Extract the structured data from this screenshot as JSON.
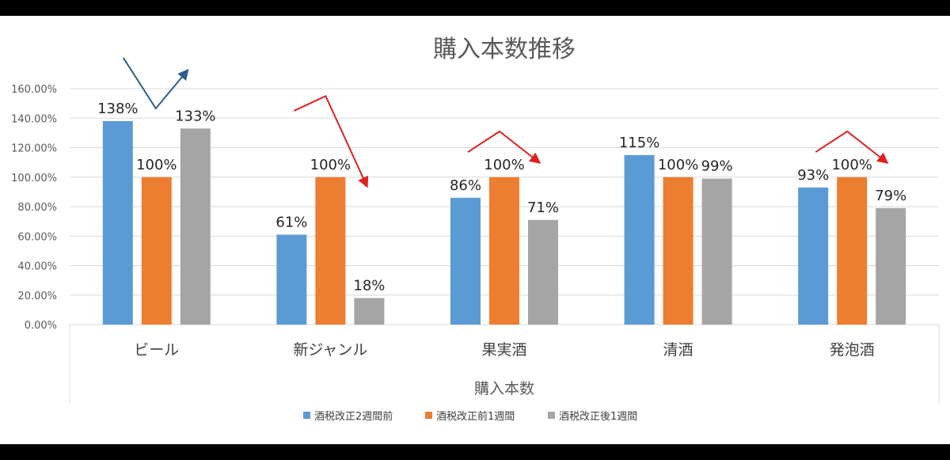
{
  "chart_data": {
    "type": "bar",
    "title": "購入本数推移",
    "xlabel": "購入本数",
    "ylabel": "",
    "ylim": [
      0,
      1.6
    ],
    "yticks": [
      "0.00%",
      "20.00%",
      "40.00%",
      "60.00%",
      "80.00%",
      "100.00%",
      "120.00%",
      "140.00%",
      "160.00%"
    ],
    "categories": [
      "ビール",
      "新ジャンル",
      "果実酒",
      "清酒",
      "発泡酒"
    ],
    "grid": true,
    "legend_position": "bottom",
    "series": [
      {
        "name": "酒税改正2週間前",
        "color": "#5B9BD5",
        "values": [
          1.38,
          0.61,
          0.86,
          1.15,
          0.93
        ],
        "labels": [
          "138%",
          "61%",
          "86%",
          "115%",
          "93%"
        ]
      },
      {
        "name": "酒税改正前1週間",
        "color": "#ED7D31",
        "values": [
          1.0,
          1.0,
          1.0,
          1.0,
          1.0
        ],
        "labels": [
          "100%",
          "100%",
          "100%",
          "100%",
          "100%"
        ]
      },
      {
        "name": "酒税改正後1週間",
        "color": "#A5A5A5",
        "values": [
          1.33,
          0.18,
          0.71,
          0.99,
          0.79
        ],
        "labels": [
          "133%",
          "18%",
          "71%",
          "99%",
          "79%"
        ]
      }
    ],
    "annotations": [
      {
        "category": "ビール",
        "shape": "arrow-down-up",
        "color": "#2E5F8A"
      },
      {
        "category": "新ジャンル",
        "shape": "arrow-up-down",
        "color": "#E02020"
      },
      {
        "category": "果実酒",
        "shape": "arrow-up-down",
        "color": "#E02020"
      },
      {
        "category": "発泡酒",
        "shape": "arrow-up-down",
        "color": "#E02020"
      }
    ]
  }
}
